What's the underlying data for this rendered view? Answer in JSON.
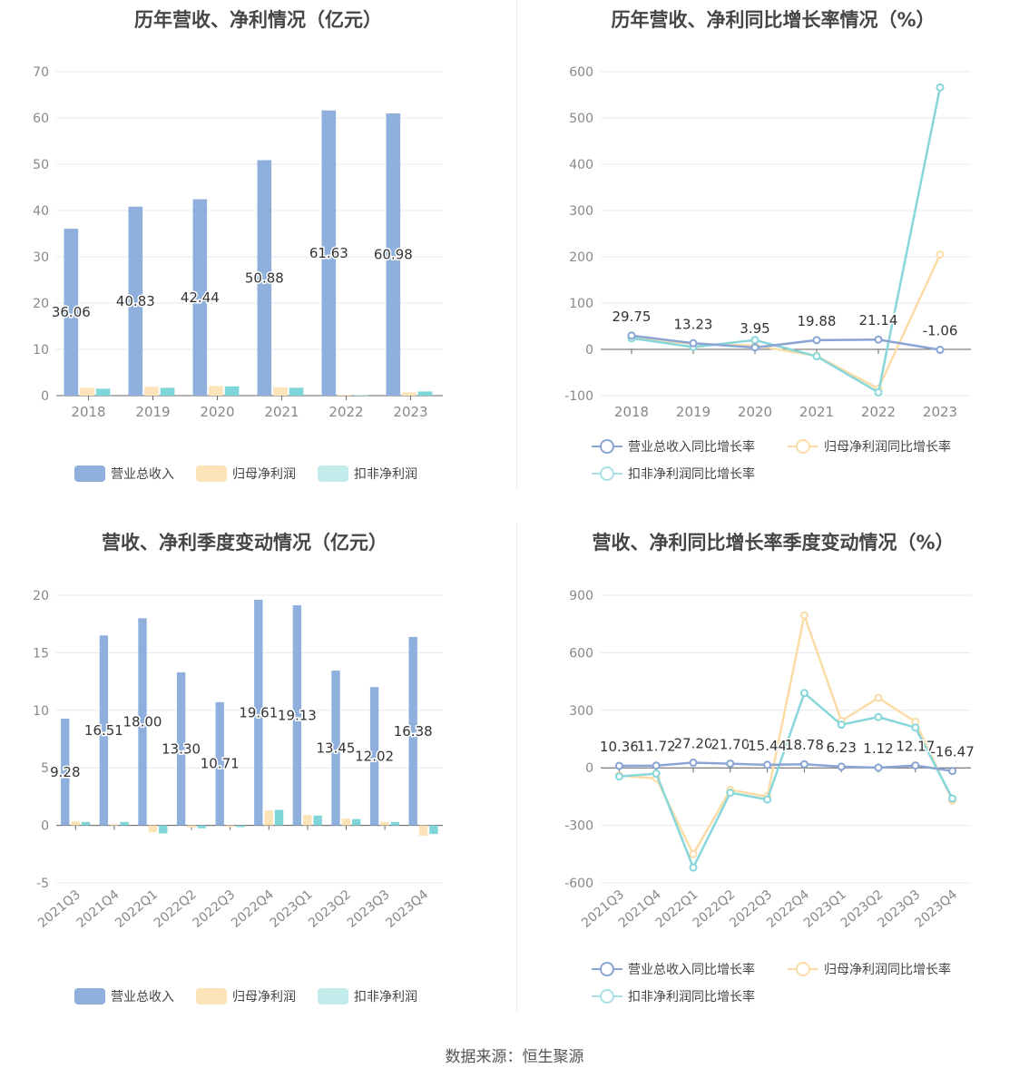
{
  "source": "数据来源：恒生聚源",
  "colors": {
    "revenue": "#8fb0dc",
    "net": "#fde3b8",
    "deducted": "#7fd6d8",
    "revenue_line": "#8aa5d4",
    "net_line": "#fcdca6",
    "deducted_line": "#86d6da"
  },
  "chart_data": [
    {
      "type": "bar",
      "title": "历年营收、净利情况（亿元）",
      "categories": [
        "2018",
        "2019",
        "2020",
        "2021",
        "2022",
        "2023"
      ],
      "ylim": [
        0,
        70
      ],
      "yticks": [
        "0",
        "10",
        "20",
        "30",
        "40",
        "50",
        "60",
        "70"
      ],
      "series": [
        {
          "name": "营业总收入",
          "values": [
            36.06,
            40.83,
            42.44,
            50.88,
            61.63,
            60.98
          ],
          "labels": [
            "36.06",
            "40.83",
            "42.44",
            "50.88",
            "61.63",
            "60.98"
          ]
        },
        {
          "name": "归母净利润",
          "values": [
            1.7,
            1.9,
            2.1,
            1.8,
            0.2,
            0.7
          ]
        },
        {
          "name": "扣非净利润",
          "values": [
            1.5,
            1.7,
            2.0,
            1.7,
            0.1,
            0.9
          ]
        }
      ],
      "legend": "bottom"
    },
    {
      "type": "line",
      "title": "历年营收、净利同比增长率情况（%）",
      "categories": [
        "2018",
        "2019",
        "2020",
        "2021",
        "2022",
        "2023"
      ],
      "ylim": [
        -100,
        600
      ],
      "yticks": [
        "-100",
        "0",
        "100",
        "200",
        "300",
        "400",
        "500",
        "600"
      ],
      "series": [
        {
          "name": "营业总收入同比增长率",
          "values": [
            29.75,
            13.23,
            3.95,
            19.88,
            21.14,
            -1.06
          ],
          "labels": [
            "29.75",
            "13.23",
            "3.95",
            "19.88",
            "21.14",
            "-1.06"
          ]
        },
        {
          "name": "归母净利润同比增长率",
          "values": [
            25,
            12,
            8,
            -14,
            -85,
            205
          ]
        },
        {
          "name": "扣非净利润同比增长率",
          "values": [
            24,
            5,
            20,
            -15,
            -93,
            566
          ]
        }
      ],
      "legend": "bottom"
    },
    {
      "type": "bar",
      "title": "营收、净利季度变动情况（亿元）",
      "categories": [
        "2021Q3",
        "2021Q4",
        "2022Q1",
        "2022Q2",
        "2022Q3",
        "2022Q4",
        "2023Q1",
        "2023Q2",
        "2023Q3",
        "2023Q4"
      ],
      "ylim": [
        -5,
        20
      ],
      "yticks": [
        "-5",
        "0",
        "5",
        "10",
        "15",
        "20"
      ],
      "series": [
        {
          "name": "营业总收入",
          "values": [
            9.28,
            16.51,
            18.0,
            13.3,
            10.71,
            19.61,
            19.13,
            13.45,
            12.02,
            16.38
          ],
          "labels": [
            "9.28",
            "16.51",
            "18.00",
            "13.30",
            "10.71",
            "19.61",
            "19.13",
            "13.45",
            "12.02",
            "16.38"
          ]
        },
        {
          "name": "归母净利润",
          "values": [
            0.35,
            0.1,
            -0.6,
            -0.2,
            -0.15,
            1.3,
            0.9,
            0.6,
            0.3,
            -0.9
          ]
        },
        {
          "name": "扣非净利润",
          "values": [
            0.3,
            0.3,
            -0.7,
            -0.25,
            -0.15,
            1.35,
            0.85,
            0.55,
            0.3,
            -0.75
          ]
        }
      ],
      "legend": "bottom"
    },
    {
      "type": "line",
      "title": "营收、净利同比增长率季度变动情况（%）",
      "categories": [
        "2021Q3",
        "2021Q4",
        "2022Q1",
        "2022Q2",
        "2022Q3",
        "2022Q4",
        "2023Q1",
        "2023Q2",
        "2023Q3",
        "2023Q4"
      ],
      "ylim": [
        -600,
        900
      ],
      "yticks": [
        "-600",
        "-300",
        "0",
        "300",
        "600",
        "900"
      ],
      "series": [
        {
          "name": "营业总收入同比增长率",
          "values": [
            10.36,
            11.72,
            27.2,
            21.7,
            15.44,
            18.78,
            6.23,
            1.12,
            12.17,
            -16.47
          ],
          "labels": [
            "10.36",
            "11.72",
            "27.20",
            "21.70",
            "15.44",
            "18.78",
            "6.23",
            "1.12",
            "12.17",
            "-16.47"
          ]
        },
        {
          "name": "归母净利润同比增长率",
          "values": [
            -40,
            -55,
            -450,
            -115,
            -150,
            795,
            245,
            365,
            240,
            -170
          ]
        },
        {
          "name": "扣非净利润同比增长率",
          "values": [
            -45,
            -30,
            -520,
            -130,
            -165,
            390,
            225,
            265,
            210,
            -160
          ]
        }
      ],
      "legend": "bottom"
    }
  ]
}
